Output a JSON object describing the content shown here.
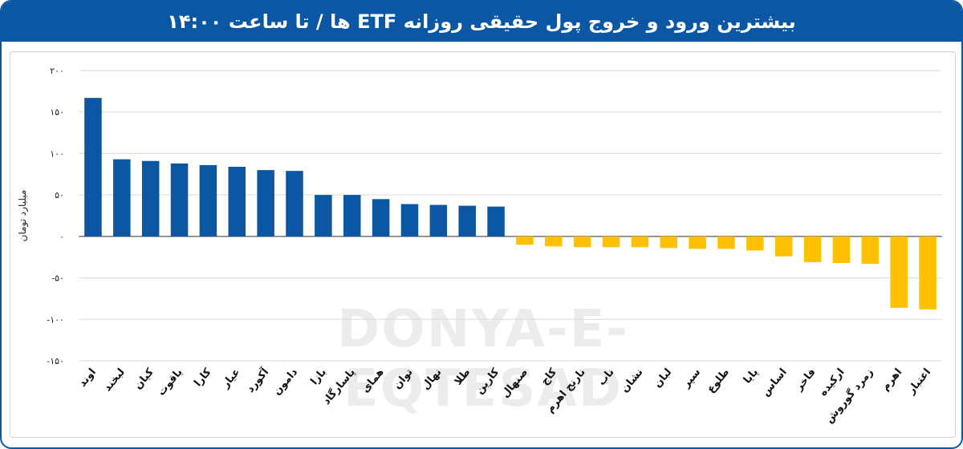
{
  "header": {
    "title": "بیشترین ورود و خروج پول حقیقی روزانه ETF ها / تا ساعت ۱۴:۰۰"
  },
  "watermark": "DONYA-E-EQTESAD",
  "colors": {
    "positive": "#0b57a4",
    "negative": "#ffc000",
    "header": "#0b57a4"
  },
  "chart_data": {
    "type": "bar",
    "title": "بیشترین ورود و خروج پول حقیقی روزانه ETF ها / تا ساعت ۱۴:۰۰",
    "xlabel": "",
    "ylabel": "میلیارد تومان",
    "ylim": [
      -150,
      200
    ],
    "yticks": [
      200,
      150,
      100,
      50,
      0,
      -50,
      -100,
      -150
    ],
    "ytick_labels": [
      "۲۰۰",
      "۱۵۰",
      "۱۰۰",
      "۵۰",
      "۰",
      "-۵۰",
      "-۱۰۰",
      "-۱۵۰"
    ],
    "grid": true,
    "categories": [
      "اوند",
      "لبخند",
      "کیان",
      "یاقوت",
      "کارا",
      "عیار",
      "آکورد",
      "دامون",
      "بازا",
      "پاسارگاد",
      "همای",
      "توان",
      "نهال",
      "طلا",
      "کارین",
      "صنهال",
      "کاج",
      "نارنج اهرم",
      "ناب",
      "نشان",
      "لبان",
      "سپر",
      "طلوع",
      "پایا",
      "اساس",
      "فاخر",
      "ارکیده",
      "زمرد گوروش",
      "اهرم",
      "اعتبار"
    ],
    "values": [
      167,
      93,
      91,
      88,
      86,
      84,
      80,
      79,
      50,
      50,
      45,
      39,
      38,
      37,
      36,
      -10,
      -12,
      -13,
      -13,
      -13,
      -14,
      -15,
      -15,
      -17,
      -24,
      -31,
      -32,
      -33,
      -86,
      -88
    ]
  }
}
